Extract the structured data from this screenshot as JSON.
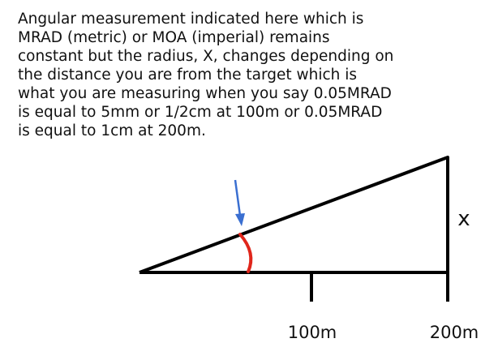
{
  "caption": {
    "lines": [
      "Angular measurement indicated here which is",
      "MRAD (metric) or MOA (imperial) remains",
      "constant but the radius, X, changes depending on",
      "the distance you are from the target which is",
      "what you are measuring when you say 0.05MRAD",
      "is equal to 5mm or 1/2cm at 100m or 0.05MRAD",
      "is equal to 1cm at 200m."
    ]
  },
  "diagram": {
    "side_label": "x",
    "distance_labels": [
      "100m",
      "200m"
    ]
  }
}
